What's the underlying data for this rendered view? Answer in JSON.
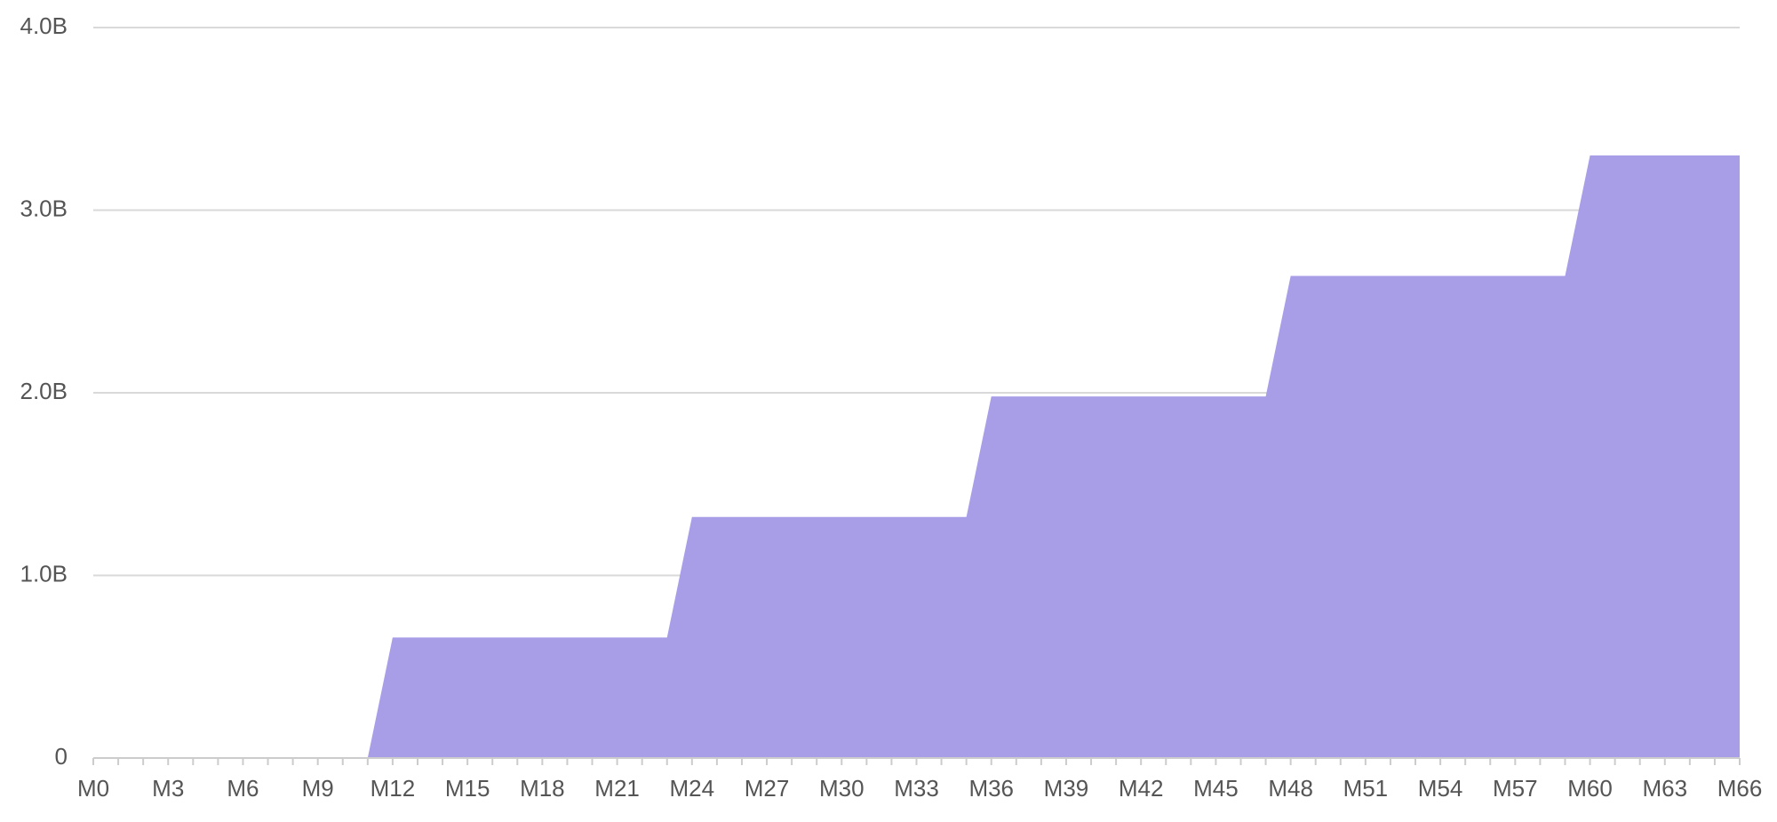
{
  "chart_data": {
    "type": "area",
    "categories": [
      "M0",
      null,
      null,
      "M3",
      null,
      null,
      "M6",
      null,
      null,
      "M9",
      null,
      null,
      "M12",
      null,
      null,
      "M15",
      null,
      null,
      "M18",
      null,
      null,
      "M21",
      null,
      null,
      "M24",
      null,
      null,
      "M27",
      null,
      null,
      "M30",
      null,
      null,
      "M33",
      null,
      null,
      "M36",
      null,
      null,
      "M39",
      null,
      null,
      "M42",
      null,
      null,
      "M45",
      null,
      null,
      "M48",
      null,
      null,
      "M51",
      null,
      null,
      "M54",
      null,
      null,
      "M57",
      null,
      null,
      "M60",
      null,
      null,
      "M63",
      null,
      null,
      "M66"
    ],
    "values": [
      0,
      0,
      0,
      0,
      0,
      0,
      0,
      0,
      0,
      0,
      0,
      0,
      660000000,
      660000000,
      660000000,
      660000000,
      660000000,
      660000000,
      660000000,
      660000000,
      660000000,
      660000000,
      660000000,
      660000000,
      1320000000,
      1320000000,
      1320000000,
      1320000000,
      1320000000,
      1320000000,
      1320000000,
      1320000000,
      1320000000,
      1320000000,
      1320000000,
      1320000000,
      1980000000,
      1980000000,
      1980000000,
      1980000000,
      1980000000,
      1980000000,
      1980000000,
      1980000000,
      1980000000,
      1980000000,
      1980000000,
      1980000000,
      2640000000,
      2640000000,
      2640000000,
      2640000000,
      2640000000,
      2640000000,
      2640000000,
      2640000000,
      2640000000,
      2640000000,
      2640000000,
      2640000000,
      3300000000,
      3300000000,
      3300000000,
      3300000000,
      3300000000,
      3300000000,
      3300000000
    ],
    "color": "#a89ee8",
    "ylim": [
      0,
      4000000000
    ],
    "yticks": [
      0,
      {
        "value": 1000000000,
        "label": "1.0B"
      },
      {
        "value": 2000000000,
        "label": "2.0B"
      },
      {
        "value": 3000000000,
        "label": "3.0B"
      },
      {
        "value": 4000000000,
        "label": "4.0B"
      }
    ],
    "grid": true
  }
}
